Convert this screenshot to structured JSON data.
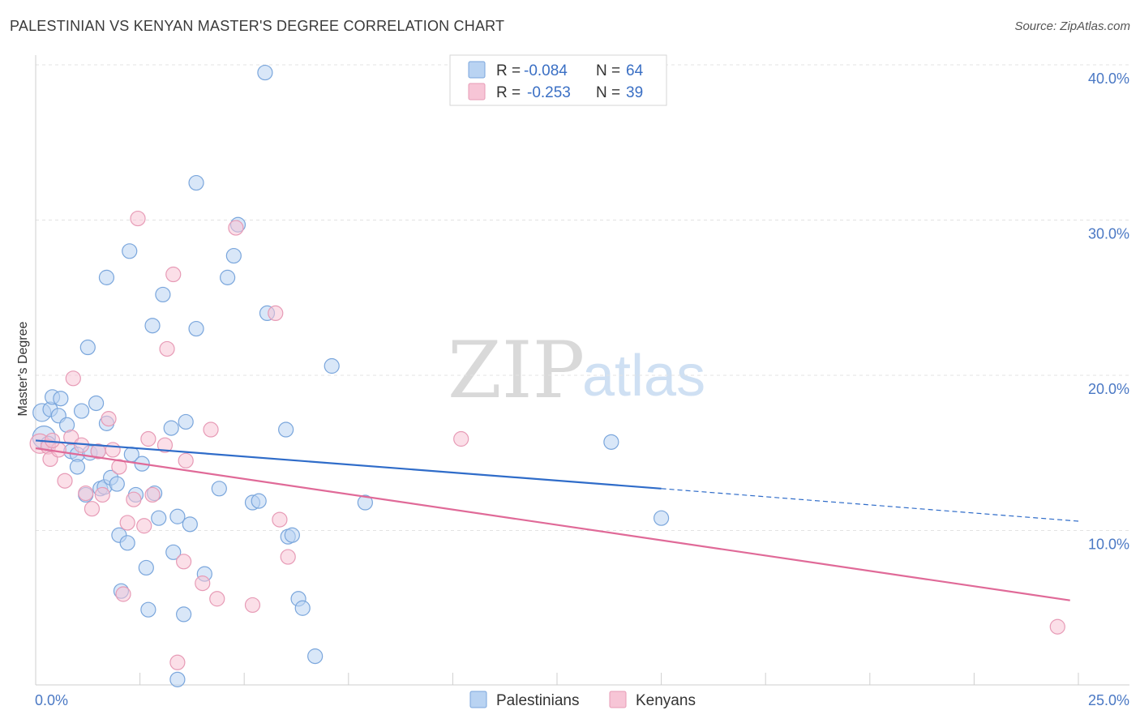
{
  "title": "PALESTINIAN VS KENYAN MASTER'S DEGREE CORRELATION CHART",
  "source": "Source: ZipAtlas.com",
  "watermark": {
    "zip": "ZIP",
    "atlas": "atlas"
  },
  "colors": {
    "palestinians_fill": "#b9d3f2",
    "palestinians_stroke": "#7aa6dc",
    "palestinians_line": "#2f6cc9",
    "kenyans_fill": "#f7c5d6",
    "kenyans_stroke": "#e79bb6",
    "kenyans_line": "#e06a98",
    "tick_text": "#4a78c4"
  },
  "legend": {
    "rows": [
      {
        "r_label": "R = ",
        "r_value": "-0.084",
        "n_label": "N = ",
        "n_value": "64"
      },
      {
        "r_label": "R = ",
        "r_value": "-0.253",
        "n_label": "N = ",
        "n_value": "39"
      }
    ]
  },
  "bottom_legend": [
    "Palestinians",
    "Kenyans"
  ],
  "chart_data": {
    "type": "scatter",
    "title": "PALESTINIAN VS KENYAN MASTER'S DEGREE CORRELATION CHART",
    "xlabel": "",
    "ylabel": "Master's Degree",
    "xlim": [
      0,
      25
    ],
    "ylim": [
      0,
      40
    ],
    "x_tick_labels": [
      "0.0%",
      "25.0%"
    ],
    "y_ticks": [
      10,
      20,
      30,
      40
    ],
    "y_tick_labels": [
      "10.0%",
      "20.0%",
      "30.0%",
      "40.0%"
    ],
    "legend_position": "top-center",
    "series": [
      {
        "name": "Palestinians",
        "r": -0.084,
        "n": 64,
        "trend": {
          "x0": 0,
          "y0": 15.8,
          "x1": 15,
          "y1": 12.7,
          "dashed_to_x": 25,
          "dashed_to_y": 10.6
        },
        "points": [
          [
            0.15,
            17.6,
            11
          ],
          [
            0.2,
            16.0,
            14
          ],
          [
            0.3,
            15.6,
            9
          ],
          [
            0.35,
            17.8,
            9
          ],
          [
            0.4,
            18.6,
            9
          ],
          [
            0.55,
            17.4,
            9
          ],
          [
            0.6,
            18.5,
            9
          ],
          [
            0.75,
            16.8,
            9
          ],
          [
            0.85,
            15.1,
            9
          ],
          [
            1.0,
            14.9,
            9
          ],
          [
            1.0,
            14.1,
            9
          ],
          [
            1.1,
            17.7,
            9
          ],
          [
            1.2,
            12.3,
            9
          ],
          [
            1.25,
            21.8,
            9
          ],
          [
            1.3,
            15.0,
            9
          ],
          [
            1.45,
            18.2,
            9
          ],
          [
            1.55,
            12.7,
            9
          ],
          [
            1.65,
            12.8,
            9
          ],
          [
            1.7,
            26.3,
            9
          ],
          [
            1.7,
            16.9,
            9
          ],
          [
            1.8,
            13.4,
            9
          ],
          [
            1.95,
            13.0,
            9
          ],
          [
            2.0,
            9.7,
            9
          ],
          [
            2.05,
            6.1,
            9
          ],
          [
            2.2,
            9.2,
            9
          ],
          [
            2.25,
            28.0,
            9
          ],
          [
            2.3,
            14.9,
            9
          ],
          [
            2.4,
            12.3,
            9
          ],
          [
            2.55,
            14.3,
            9
          ],
          [
            2.65,
            7.6,
            9
          ],
          [
            2.7,
            4.9,
            9
          ],
          [
            2.8,
            23.2,
            9
          ],
          [
            2.85,
            12.4,
            9
          ],
          [
            2.95,
            10.8,
            9
          ],
          [
            3.05,
            25.2,
            9
          ],
          [
            3.25,
            16.6,
            9
          ],
          [
            3.3,
            8.6,
            9
          ],
          [
            3.4,
            10.9,
            9
          ],
          [
            3.55,
            4.6,
            9
          ],
          [
            3.6,
            17.0,
            9
          ],
          [
            3.7,
            10.4,
            9
          ],
          [
            3.85,
            23.0,
            9
          ],
          [
            3.85,
            32.4,
            9
          ],
          [
            4.05,
            7.2,
            9
          ],
          [
            4.4,
            12.7,
            9
          ],
          [
            4.6,
            26.3,
            9
          ],
          [
            4.75,
            27.7,
            9
          ],
          [
            4.85,
            29.7,
            9
          ],
          [
            5.2,
            11.8,
            9
          ],
          [
            5.35,
            11.9,
            9
          ],
          [
            5.5,
            39.5,
            9
          ],
          [
            5.55,
            24.0,
            9
          ],
          [
            6.0,
            16.5,
            9
          ],
          [
            6.05,
            9.6,
            9
          ],
          [
            6.15,
            9.7,
            9
          ],
          [
            6.3,
            5.6,
            9
          ],
          [
            6.4,
            5.0,
            9
          ],
          [
            6.7,
            1.9,
            9
          ],
          [
            7.1,
            20.6,
            9
          ],
          [
            7.9,
            11.8,
            9
          ],
          [
            3.4,
            0.4,
            9
          ],
          [
            13.8,
            15.7,
            9
          ],
          [
            15.0,
            10.8,
            9
          ],
          [
            1.5,
            15.1,
            9
          ]
        ]
      },
      {
        "name": "Kenyans",
        "r": -0.253,
        "n": 39,
        "trend": {
          "x0": 0,
          "y0": 15.3,
          "x1": 24.8,
          "y1": 5.5
        },
        "points": [
          [
            0.1,
            15.6,
            12
          ],
          [
            0.3,
            15.4,
            9
          ],
          [
            0.35,
            14.6,
            9
          ],
          [
            0.55,
            15.2,
            9
          ],
          [
            0.7,
            13.2,
            9
          ],
          [
            0.85,
            16.0,
            9
          ],
          [
            0.9,
            19.8,
            9
          ],
          [
            1.1,
            15.5,
            9
          ],
          [
            1.2,
            12.4,
            9
          ],
          [
            1.35,
            11.4,
            9
          ],
          [
            1.5,
            15.1,
            9
          ],
          [
            1.6,
            12.3,
            9
          ],
          [
            1.75,
            17.2,
            9
          ],
          [
            1.85,
            15.2,
            9
          ],
          [
            2.0,
            14.1,
            9
          ],
          [
            2.1,
            5.9,
            9
          ],
          [
            2.2,
            10.5,
            9
          ],
          [
            2.35,
            12.0,
            9
          ],
          [
            2.45,
            30.1,
            9
          ],
          [
            2.6,
            10.3,
            9
          ],
          [
            2.7,
            15.9,
            9
          ],
          [
            2.8,
            12.3,
            9
          ],
          [
            3.1,
            15.5,
            9
          ],
          [
            3.15,
            21.7,
            9
          ],
          [
            3.3,
            26.5,
            9
          ],
          [
            3.4,
            1.5,
            9
          ],
          [
            3.55,
            8.0,
            9
          ],
          [
            3.6,
            14.5,
            9
          ],
          [
            4.0,
            6.6,
            9
          ],
          [
            4.2,
            16.5,
            9
          ],
          [
            4.35,
            5.6,
            9
          ],
          [
            4.8,
            29.5,
            9
          ],
          [
            5.2,
            5.2,
            9
          ],
          [
            5.75,
            24.0,
            9
          ],
          [
            5.85,
            10.7,
            9
          ],
          [
            6.05,
            8.3,
            9
          ],
          [
            10.2,
            15.9,
            9
          ],
          [
            24.5,
            3.8,
            9
          ],
          [
            0.4,
            15.8,
            9
          ]
        ]
      }
    ]
  }
}
